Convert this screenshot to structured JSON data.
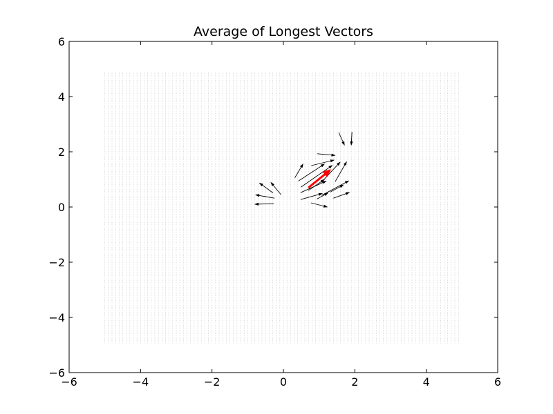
{
  "chart_data": {
    "type": "quiver",
    "title": "Average of Longest Vectors",
    "xlabel": "",
    "ylabel": "",
    "xlim": [
      -6,
      6
    ],
    "ylim": [
      -6,
      6
    ],
    "xticks": [
      -6,
      -4,
      -2,
      0,
      2,
      4,
      6
    ],
    "yticks": [
      -6,
      -4,
      -2,
      0,
      2,
      4,
      6
    ],
    "xtick_labels": [
      "−6",
      "−4",
      "−2",
      "0",
      "2",
      "4",
      "6"
    ],
    "ytick_labels": [
      "−6",
      "−4",
      "−2",
      "0",
      "2",
      "4",
      "6"
    ],
    "grid": false,
    "background_field": {
      "x_range": [
        -5,
        4.9
      ],
      "y_range": [
        -5,
        4.9
      ],
      "step": 0.1,
      "color": "#b0b0b0"
    },
    "longest_vectors": [
      {
        "x": 0.95,
        "y": 1.93,
        "u": 0.5,
        "v": -0.06
      },
      {
        "x": 1.55,
        "y": 2.7,
        "u": 0.16,
        "v": -0.46
      },
      {
        "x": 1.92,
        "y": 2.72,
        "u": -0.02,
        "v": -0.48
      },
      {
        "x": 0.32,
        "y": 1.06,
        "u": 0.23,
        "v": 0.5
      },
      {
        "x": 0.42,
        "y": 0.94,
        "u": 0.73,
        "v": 0.62
      },
      {
        "x": 0.78,
        "y": 1.5,
        "u": 0.64,
        "v": 0.2
      },
      {
        "x": 0.49,
        "y": 0.72,
        "u": 0.88,
        "v": 0.79
      },
      {
        "x": 1.06,
        "y": 0.89,
        "u": 0.53,
        "v": 0.74
      },
      {
        "x": 1.45,
        "y": 0.92,
        "u": 0.32,
        "v": 0.72
      },
      {
        "x": 0.48,
        "y": 0.52,
        "u": 0.72,
        "v": 0.42
      },
      {
        "x": 0.7,
        "y": 0.6,
        "u": 0.45,
        "v": 0.4
      },
      {
        "x": 1.07,
        "y": 0.42,
        "u": 0.76,
        "v": 0.53
      },
      {
        "x": 1.31,
        "y": 0.54,
        "u": 0.37,
        "v": 0.26
      },
      {
        "x": 0.48,
        "y": 0.27,
        "u": 0.61,
        "v": 0.22
      },
      {
        "x": 0.94,
        "y": 0.29,
        "u": 0.31,
        "v": 0.22
      },
      {
        "x": 1.4,
        "y": 0.32,
        "u": 0.45,
        "v": 0.21
      },
      {
        "x": 0.77,
        "y": 0.15,
        "u": 0.46,
        "v": -0.15
      },
      {
        "x": -0.29,
        "y": 0.51,
        "u": -0.38,
        "v": 0.36
      },
      {
        "x": -0.07,
        "y": 0.45,
        "u": -0.28,
        "v": 0.44
      },
      {
        "x": -0.25,
        "y": 0.32,
        "u": -0.53,
        "v": 0.12
      },
      {
        "x": -0.27,
        "y": 0.12,
        "u": -0.53,
        "v": -0.02
      }
    ],
    "average_vector": {
      "x": 0.7,
      "y": 0.7,
      "u": 0.6,
      "v": 0.63,
      "color": "#ff0000"
    }
  }
}
